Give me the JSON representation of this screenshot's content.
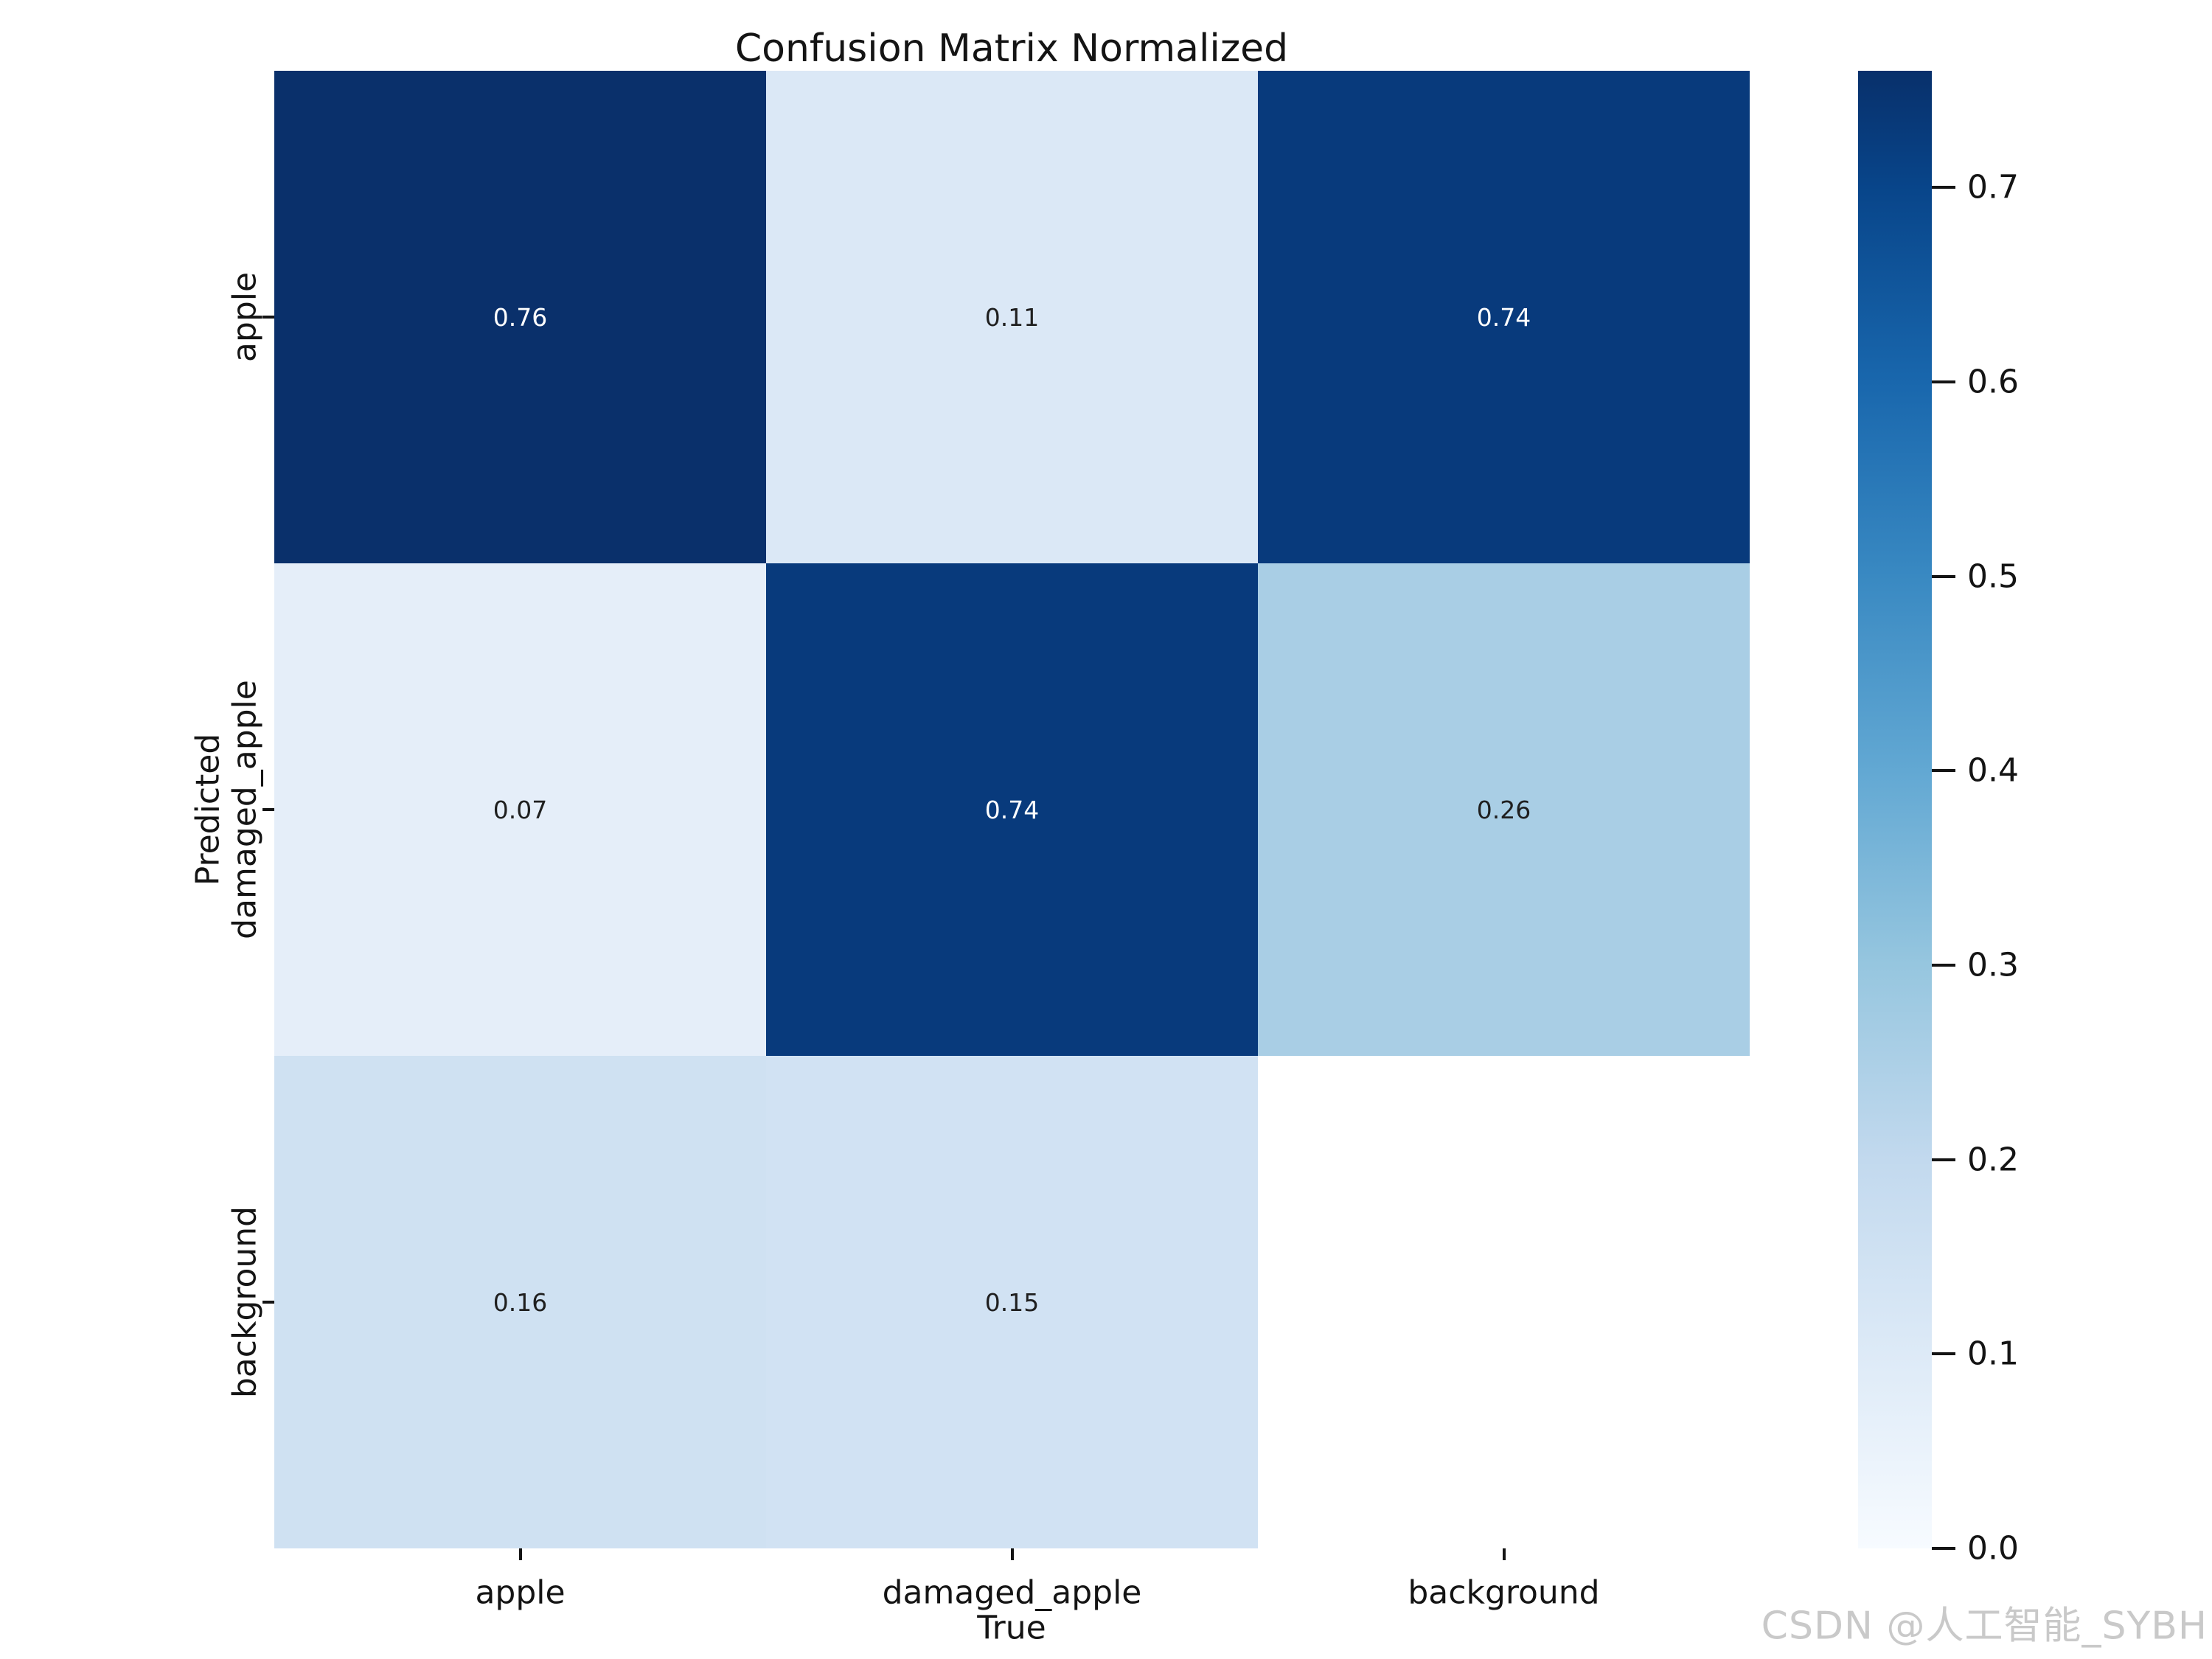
{
  "title": "Confusion Matrix Normalized",
  "watermark": "CSDN @人工智能_SYBH",
  "colors": {
    "background": "#ffffff",
    "axis_text": "#141414",
    "annotation_dark": "#1f1f1f",
    "annotation_light": "#ffffff",
    "watermark": "#c9c9c9",
    "colormap_max": "#08306b",
    "colormap_min": "#f7fbff"
  },
  "chart_data": {
    "type": "heatmap",
    "title": "Confusion Matrix Normalized",
    "xlabel": "True",
    "ylabel": "Predicted",
    "x_categories": [
      "apple",
      "damaged_apple",
      "background"
    ],
    "y_categories": [
      "apple",
      "damaged_apple",
      "background"
    ],
    "rows": [
      [
        0.76,
        0.11,
        0.74
      ],
      [
        0.07,
        0.74,
        0.26
      ],
      [
        0.16,
        0.15,
        null
      ]
    ],
    "cell_labels": [
      [
        "0.76",
        "0.11",
        "0.74"
      ],
      [
        "0.07",
        "0.74",
        "0.26"
      ],
      [
        "0.16",
        "0.15",
        ""
      ]
    ],
    "cell_colors": [
      [
        "#0a306b",
        "#dbe8f6",
        "#083a7c"
      ],
      [
        "#e5eef9",
        "#083a7c",
        "#a9cee5"
      ],
      [
        "#cfe1f2",
        "#d1e2f3",
        "#ffffff"
      ]
    ],
    "cell_text_colors": [
      [
        "#ffffff",
        "#1f1f1f",
        "#ffffff"
      ],
      [
        "#1f1f1f",
        "#ffffff",
        "#1f1f1f"
      ],
      [
        "#1f1f1f",
        "#1f1f1f",
        "#1f1f1f"
      ]
    ],
    "colormap": "Blues",
    "vmin": 0.0,
    "vmax": 0.76,
    "grid": false,
    "legend_position": "right-colorbar",
    "colorbar_ticks": [
      "0.7",
      "0.6",
      "0.5",
      "0.4",
      "0.3",
      "0.2",
      "0.1",
      "0.0"
    ],
    "colorbar_gradient_top_to_bottom": [
      {
        "offset": 0.0,
        "color": "#08306b"
      },
      {
        "offset": 0.079,
        "color": "#08458a"
      },
      {
        "offset": 0.211,
        "color": "#1967ad"
      },
      {
        "offset": 0.342,
        "color": "#3989c2"
      },
      {
        "offset": 0.474,
        "color": "#62a8d3"
      },
      {
        "offset": 0.605,
        "color": "#96c6df"
      },
      {
        "offset": 0.737,
        "color": "#c2d9ee"
      },
      {
        "offset": 0.868,
        "color": "#ddeaf7"
      },
      {
        "offset": 1.0,
        "color": "#f7fbff"
      }
    ]
  }
}
